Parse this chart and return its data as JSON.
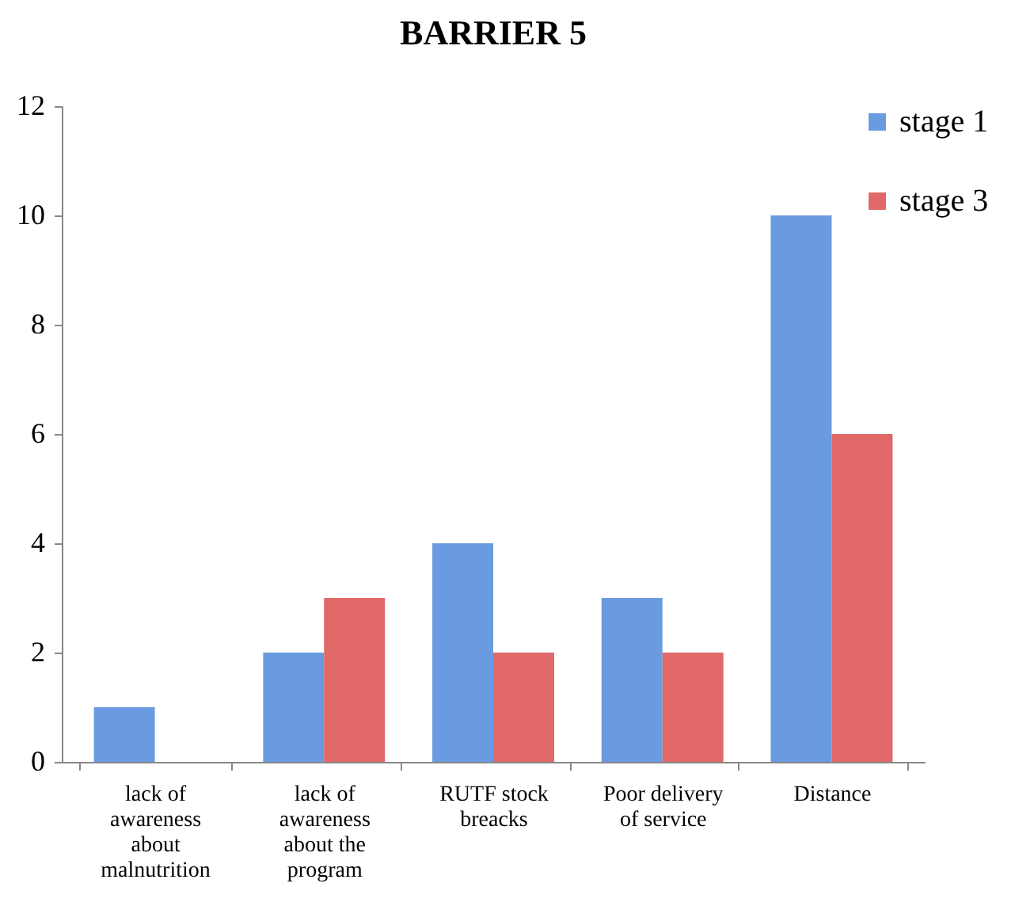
{
  "chart_data": {
    "type": "bar",
    "title": "BARRIER 5",
    "categories": [
      "lack of awareness about malnutrition",
      "lack of awareness about the program",
      "RUTF stock breacks",
      "Poor delivery of service",
      "Distance"
    ],
    "series": [
      {
        "name": "stage 1",
        "color": "#6a9be0",
        "values": [
          1,
          2,
          4,
          3,
          10
        ]
      },
      {
        "name": "stage 3",
        "color": "#e06868",
        "values": [
          0,
          3,
          2,
          2,
          6
        ]
      }
    ],
    "ylim": [
      0,
      12
    ],
    "yticks": [
      0,
      2,
      4,
      6,
      8,
      10,
      12
    ],
    "grid": false,
    "legend": "right"
  }
}
